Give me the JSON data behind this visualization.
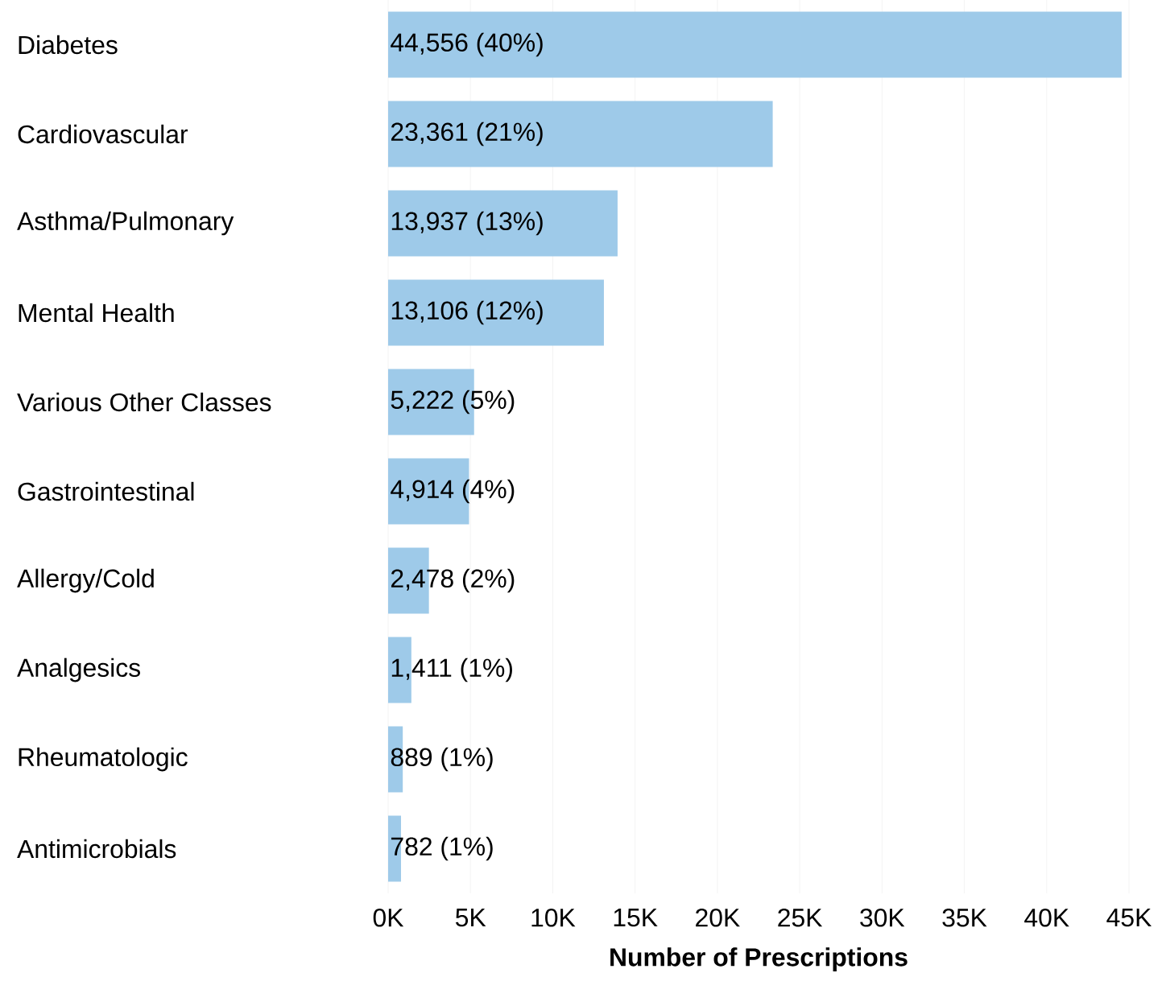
{
  "chart_data": {
    "type": "bar",
    "orientation": "horizontal",
    "xlabel": "**Number of Prescriptions**",
    "categories": [
      "Diabetes",
      "Cardiovascular",
      "Asthma/Pulmonary",
      "Mental Health",
      "Various Other Classes",
      "Gastrointestinal",
      "Allergy/Cold",
      "Analgesics",
      "Rheumatologic",
      "Antimicrobials"
    ],
    "values": [
      44556,
      23361,
      13937,
      13106,
      5222,
      4914,
      2478,
      1411,
      889,
      782
    ],
    "value_labels": [
      "44,556 (40%)",
      "23,361 (21%)",
      "13,937 (13%)",
      "13,106 (12%)",
      "5,222 (5%)",
      "4,914 (4%)",
      "2,478 (2%)",
      "1,411 (1%)",
      "889 (1%)",
      "782 (1%)"
    ],
    "color": "#9ecae9",
    "xlim": [
      0,
      45000
    ],
    "xticks": [
      {
        "value": 0,
        "label": "0K"
      },
      {
        "value": 5000,
        "label": "5K"
      },
      {
        "value": 10000,
        "label": "10K"
      },
      {
        "value": 15000,
        "label": "15K"
      },
      {
        "value": 20000,
        "label": "20K"
      },
      {
        "value": 25000,
        "label": "25K"
      },
      {
        "value": 30000,
        "label": "30K"
      },
      {
        "value": 35000,
        "label": "35K"
      },
      {
        "value": 40000,
        "label": "40K"
      },
      {
        "value": 45000,
        "label": "45K"
      }
    ],
    "grid": "x"
  }
}
